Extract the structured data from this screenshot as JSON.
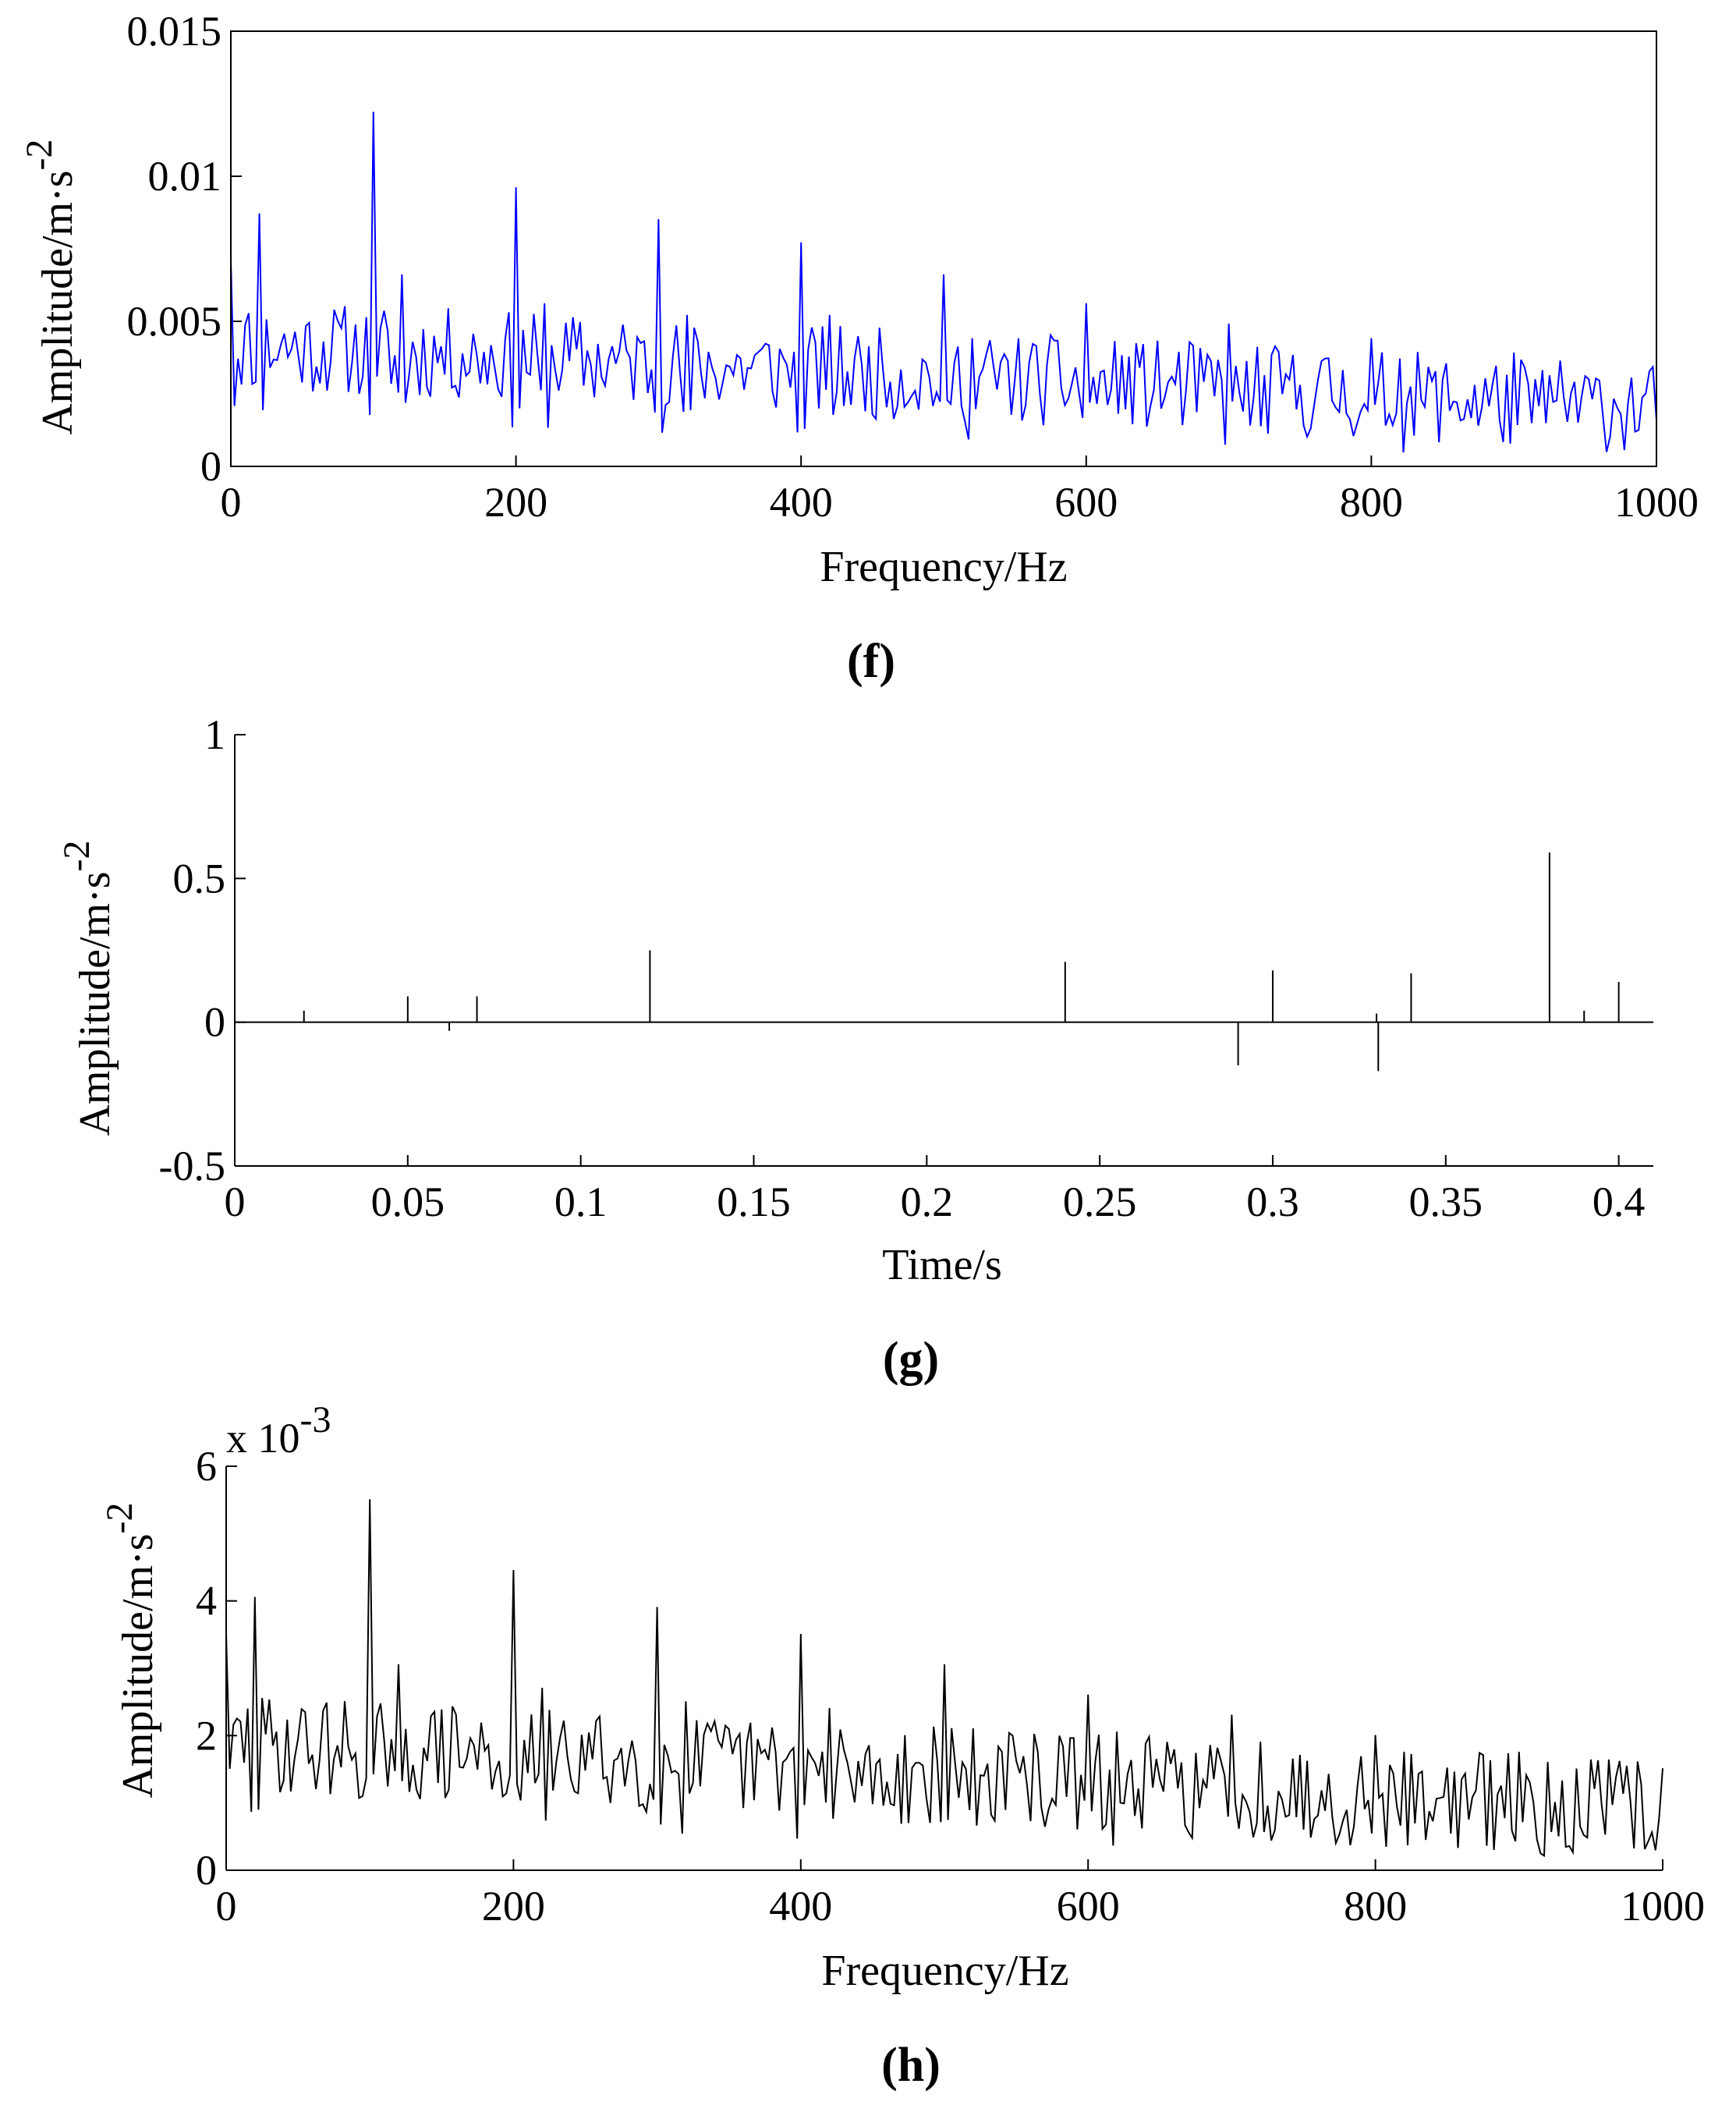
{
  "chart_data": [
    {
      "panel": "f",
      "type": "line",
      "title": "",
      "caption_letter": "f",
      "xlabel": "Frequency/Hz",
      "ylabel": "Amplitude/m·s",
      "ylabel_superscript": "-2",
      "xlim": [
        0,
        1000
      ],
      "ylim": [
        0,
        0.015
      ],
      "xticks": [
        0,
        200,
        400,
        600,
        800,
        1000
      ],
      "xtick_labels": [
        "0",
        "200",
        "400",
        "600",
        "800",
        "1000"
      ],
      "yticks": [
        0,
        0.005,
        0.01,
        0.015
      ],
      "ytick_labels": [
        "0",
        "0.005",
        "0.01",
        "0.015"
      ],
      "color": "#0000ff",
      "peaks": [
        {
          "x": 0,
          "y": 0.0071
        },
        {
          "x": 20,
          "y": 0.0087
        },
        {
          "x": 100,
          "y": 0.0122
        },
        {
          "x": 120,
          "y": 0.0066
        },
        {
          "x": 200,
          "y": 0.0096
        },
        {
          "x": 220,
          "y": 0.0056
        },
        {
          "x": 300,
          "y": 0.0085
        },
        {
          "x": 320,
          "y": 0.0052
        },
        {
          "x": 400,
          "y": 0.0077
        },
        {
          "x": 420,
          "y": 0.0052
        },
        {
          "x": 500,
          "y": 0.0066
        },
        {
          "x": 520,
          "y": 0.0044
        },
        {
          "x": 600,
          "y": 0.0056
        },
        {
          "x": 620,
          "y": 0.0043
        },
        {
          "x": 700,
          "y": 0.0049
        },
        {
          "x": 720,
          "y": 0.0041
        },
        {
          "x": 800,
          "y": 0.0044
        },
        {
          "x": 820,
          "y": 0.0037
        },
        {
          "x": 900,
          "y": 0.0039
        },
        {
          "x": 920,
          "y": 0.0033
        }
      ],
      "noise": {
        "base": 0.0042,
        "decay": 0.0022,
        "spread": 0.0032,
        "n_points": 400,
        "seed": 11
      }
    },
    {
      "panel": "g",
      "type": "line",
      "title": "",
      "caption_letter": "g",
      "xlabel": "Time/s",
      "ylabel": "Amplitude/m·s",
      "ylabel_superscript": "-2",
      "xlim": [
        0,
        0.41
      ],
      "ylim": [
        -0.5,
        1
      ],
      "xticks": [
        0,
        0.05,
        0.1,
        0.15,
        0.2,
        0.25,
        0.3,
        0.35,
        0.4
      ],
      "xtick_labels": [
        "0",
        "0.05",
        "0.1",
        "0.15",
        "0.2",
        "0.25",
        "0.3",
        "0.35",
        "0.4"
      ],
      "yticks": [
        -0.5,
        0,
        0.5,
        1
      ],
      "ytick_labels": [
        "-0.5",
        "0",
        "0.5",
        "1"
      ],
      "color": "#000000",
      "impulses": [
        {
          "x": 0.02,
          "y": 0.04
        },
        {
          "x": 0.05,
          "y": 0.09
        },
        {
          "x": 0.062,
          "y": -0.03
        },
        {
          "x": 0.07,
          "y": 0.09
        },
        {
          "x": 0.12,
          "y": 0.25
        },
        {
          "x": 0.24,
          "y": 0.21
        },
        {
          "x": 0.29,
          "y": -0.15
        },
        {
          "x": 0.3,
          "y": 0.18
        },
        {
          "x": 0.33,
          "y": 0.03
        },
        {
          "x": 0.3305,
          "y": -0.17
        },
        {
          "x": 0.34,
          "y": 0.17
        },
        {
          "x": 0.38,
          "y": 0.59
        },
        {
          "x": 0.39,
          "y": 0.04
        },
        {
          "x": 0.4,
          "y": 0.14
        }
      ]
    },
    {
      "panel": "h",
      "type": "line",
      "title": "",
      "caption_letter": "h",
      "xlabel": "Frequency/Hz",
      "ylabel": "Amplitude/m·s",
      "ylabel_superscript": "-2",
      "scale_label": "x 10",
      "scale_exponent": "-3",
      "xlim": [
        0,
        1000
      ],
      "ylim": [
        0,
        6
      ],
      "xticks": [
        0,
        200,
        400,
        600,
        800,
        1000
      ],
      "xtick_labels": [
        "0",
        "200",
        "400",
        "600",
        "800",
        "1000"
      ],
      "yticks": [
        0,
        2,
        4,
        6
      ],
      "ytick_labels": [
        "0",
        "2",
        "4",
        "6"
      ],
      "color": "#000000",
      "peaks": [
        {
          "x": 0,
          "y": 3.5
        },
        {
          "x": 20,
          "y": 4.05
        },
        {
          "x": 100,
          "y": 5.5
        },
        {
          "x": 120,
          "y": 3.05
        },
        {
          "x": 200,
          "y": 4.45
        },
        {
          "x": 220,
          "y": 2.7
        },
        {
          "x": 300,
          "y": 3.9
        },
        {
          "x": 320,
          "y": 2.5
        },
        {
          "x": 400,
          "y": 3.5
        },
        {
          "x": 420,
          "y": 2.4
        },
        {
          "x": 500,
          "y": 3.05
        },
        {
          "x": 520,
          "y": 2.1
        },
        {
          "x": 600,
          "y": 2.6
        },
        {
          "x": 620,
          "y": 2.05
        },
        {
          "x": 700,
          "y": 2.3
        },
        {
          "x": 720,
          "y": 1.9
        },
        {
          "x": 800,
          "y": 2.0
        },
        {
          "x": 820,
          "y": 1.75
        },
        {
          "x": 900,
          "y": 1.75
        },
        {
          "x": 920,
          "y": 1.6
        }
      ],
      "noise": {
        "base": 1.9,
        "decay": 1.0,
        "spread": 1.5,
        "n_points": 400,
        "seed": 29
      }
    }
  ]
}
